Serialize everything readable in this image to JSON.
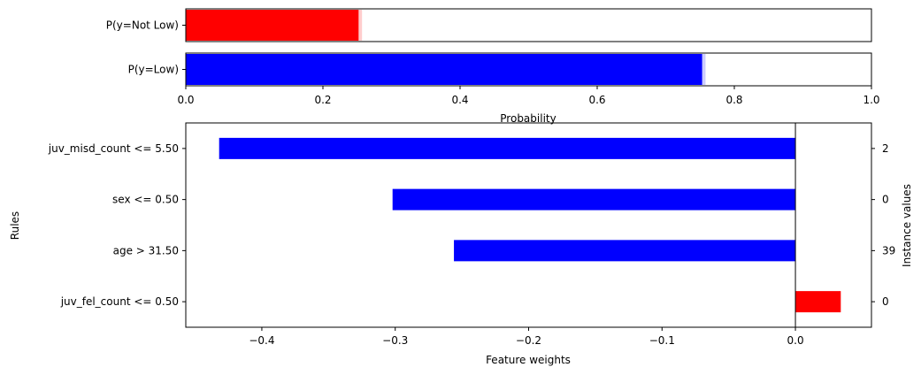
{
  "chart_data": [
    {
      "type": "bar",
      "orientation": "horizontal",
      "categories": [
        "P(y=Not Low)",
        "P(y=Low)"
      ],
      "values": [
        0.252,
        0.753
      ],
      "uncertainty_upper": [
        0.257,
        0.758
      ],
      "xlabel": "Probability",
      "xlim": [
        0,
        1
      ],
      "xticks": [
        "0.0",
        "0.2",
        "0.4",
        "0.6",
        "0.8",
        "1.0"
      ],
      "bar_colors": [
        "#ff0000",
        "#0000ff"
      ],
      "grid": false
    },
    {
      "type": "bar",
      "orientation": "horizontal",
      "categories": [
        "juv_misd_count <= 5.50",
        "sex <= 0.50",
        "age > 31.50",
        "juv_fel_count <= 0.50"
      ],
      "values": [
        -0.432,
        -0.302,
        -0.256,
        0.034
      ],
      "instance_values": [
        "2",
        "0",
        "39",
        "0"
      ],
      "xlabel": "Feature weights",
      "ylabel": "Rules",
      "y2label": "Instance values",
      "xlim": [
        -0.457,
        0.057
      ],
      "xticks": [
        -0.4,
        -0.3,
        -0.2,
        -0.1,
        0.0
      ],
      "xtick_labels": [
        "−0.4",
        "−0.3",
        "−0.2",
        "−0.1",
        "0.0"
      ],
      "positive_color": "#ff0000",
      "negative_color": "#0000ff",
      "grid": false
    }
  ]
}
